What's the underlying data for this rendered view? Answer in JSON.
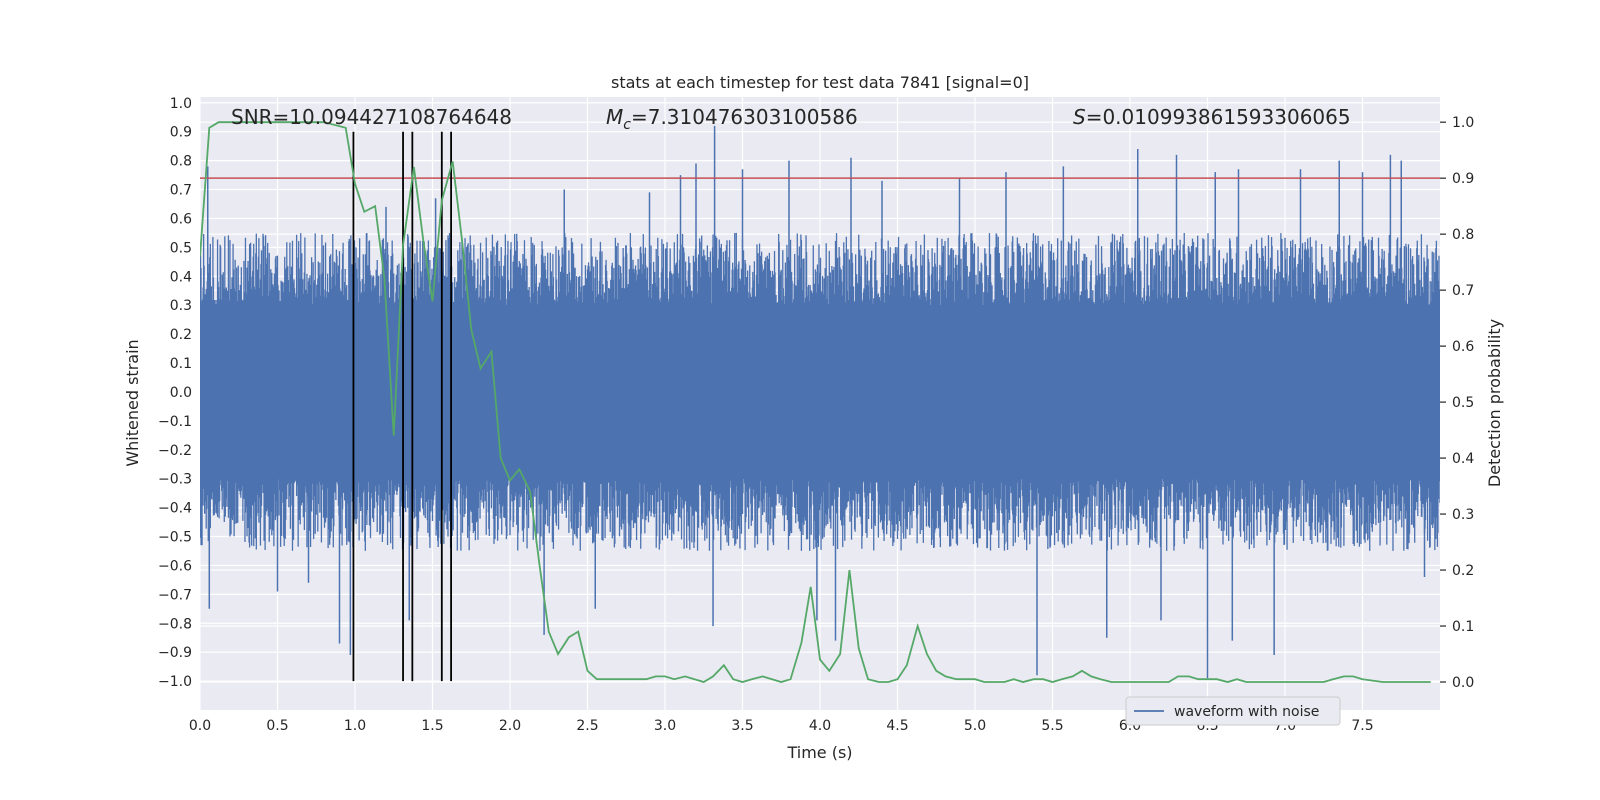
{
  "chart_data": {
    "type": "line",
    "title": "stats at each timestep for test data 7841 [signal=0]",
    "xlabel": "Time (s)",
    "ylabel": "Whitened strain",
    "y2label": "Detection probability",
    "xlim": [
      0,
      8
    ],
    "ylim": [
      -1.1,
      1.02
    ],
    "y2lim": [
      -0.05,
      1.045
    ],
    "xticks": [
      0.0,
      0.5,
      1.0,
      1.5,
      2.0,
      2.5,
      3.0,
      3.5,
      4.0,
      4.5,
      5.0,
      5.5,
      6.0,
      6.5,
      7.0,
      7.5
    ],
    "xtick_labels": [
      "0.0",
      "0.5",
      "1.0",
      "1.5",
      "2.0",
      "2.5",
      "3.0",
      "3.5",
      "4.0",
      "4.5",
      "5.0",
      "5.5",
      "6.0",
      "6.5",
      "7.0",
      "7.5"
    ],
    "yticks": [
      1.0,
      0.9,
      0.8,
      0.7,
      0.6,
      0.5,
      0.4,
      0.3,
      0.2,
      0.1,
      0.0,
      -0.1,
      -0.2,
      -0.3,
      -0.4,
      -0.5,
      -0.6,
      -0.7,
      -0.8,
      -0.9,
      -1.0
    ],
    "ytick_labels": [
      "1.0",
      "0.9",
      "0.8",
      "0.7",
      "0.6",
      "0.5",
      "0.4",
      "0.3",
      "0.2",
      "0.1",
      "0.0",
      "−0.1",
      "−0.2",
      "−0.3",
      "−0.4",
      "−0.5",
      "−0.6",
      "−0.7",
      "−0.8",
      "−0.9",
      "−1.0"
    ],
    "y2ticks": [
      0.0,
      0.1,
      0.2,
      0.3,
      0.4,
      0.5,
      0.6,
      0.7,
      0.8,
      0.9,
      1.0
    ],
    "y2tick_labels": [
      "0.0",
      "0.1",
      "0.2",
      "0.3",
      "0.4",
      "0.5",
      "0.6",
      "0.7",
      "0.8",
      "0.9",
      "1.0"
    ],
    "annotations": {
      "snr": "SNR=10.094427108764648",
      "mc_symbol": "M",
      "mc_sub": "c",
      "mc_value": "=7.310476303100586",
      "s_symbol": "S",
      "s_value": "=0.010993861593306065"
    },
    "threshold": {
      "value": 0.9,
      "axis": "right",
      "color": "#c44e52"
    },
    "vertical_markers": {
      "x": [
        0.99,
        1.31,
        1.37,
        1.56,
        1.62
      ],
      "y_range": [
        -1.0,
        0.9
      ],
      "color": "#000000"
    },
    "legend": {
      "entries": [
        "waveform with noise"
      ],
      "position": "lower-right"
    },
    "series": [
      {
        "name": "waveform with noise",
        "axis": "left",
        "color": "#4c72b0",
        "representation": "dense noise band",
        "band_core": [
          -0.3,
          0.3
        ],
        "typical_envelope": [
          -0.55,
          0.55
        ],
        "spikes": [
          {
            "x": 0.05,
            "y": 0.78
          },
          {
            "x": 0.06,
            "y": -0.75
          },
          {
            "x": 0.5,
            "y": -0.69
          },
          {
            "x": 0.7,
            "y": -0.66
          },
          {
            "x": 0.9,
            "y": -0.87
          },
          {
            "x": 0.97,
            "y": -0.91
          },
          {
            "x": 1.2,
            "y": 0.64
          },
          {
            "x": 1.35,
            "y": -0.79
          },
          {
            "x": 1.52,
            "y": 0.67
          },
          {
            "x": 2.22,
            "y": -0.84
          },
          {
            "x": 2.35,
            "y": 0.7
          },
          {
            "x": 2.55,
            "y": -0.75
          },
          {
            "x": 2.9,
            "y": 0.69
          },
          {
            "x": 3.1,
            "y": 0.75
          },
          {
            "x": 3.2,
            "y": 0.79
          },
          {
            "x": 3.32,
            "y": 0.92
          },
          {
            "x": 3.31,
            "y": -0.81
          },
          {
            "x": 3.5,
            "y": 0.77
          },
          {
            "x": 3.8,
            "y": 0.8
          },
          {
            "x": 3.98,
            "y": -0.79
          },
          {
            "x": 4.1,
            "y": -0.86
          },
          {
            "x": 4.2,
            "y": 0.81
          },
          {
            "x": 4.4,
            "y": 0.73
          },
          {
            "x": 4.9,
            "y": 0.74
          },
          {
            "x": 5.2,
            "y": 0.76
          },
          {
            "x": 5.4,
            "y": -0.98
          },
          {
            "x": 5.57,
            "y": 0.78
          },
          {
            "x": 5.85,
            "y": -0.85
          },
          {
            "x": 6.05,
            "y": 0.84
          },
          {
            "x": 6.2,
            "y": -0.79
          },
          {
            "x": 6.3,
            "y": 0.82
          },
          {
            "x": 6.5,
            "y": -0.99
          },
          {
            "x": 6.55,
            "y": 0.76
          },
          {
            "x": 6.7,
            "y": 0.77
          },
          {
            "x": 6.66,
            "y": -0.86
          },
          {
            "x": 6.93,
            "y": -0.91
          },
          {
            "x": 7.1,
            "y": 0.77
          },
          {
            "x": 7.35,
            "y": 0.8
          },
          {
            "x": 7.5,
            "y": 0.76
          },
          {
            "x": 7.68,
            "y": 0.82
          },
          {
            "x": 7.75,
            "y": 0.8
          },
          {
            "x": 7.9,
            "y": -0.64
          }
        ]
      },
      {
        "name": "detection probability",
        "axis": "right",
        "color": "#55a868",
        "x": [
          0.0,
          0.06,
          0.12,
          0.2,
          0.4,
          0.6,
          0.8,
          0.94,
          1.0,
          1.06,
          1.13,
          1.19,
          1.25,
          1.31,
          1.38,
          1.44,
          1.5,
          1.56,
          1.63,
          1.69,
          1.75,
          1.81,
          1.88,
          1.94,
          2.0,
          2.06,
          2.13,
          2.19,
          2.25,
          2.31,
          2.38,
          2.44,
          2.5,
          2.56,
          2.63,
          2.69,
          2.75,
          2.81,
          2.88,
          2.94,
          3.0,
          3.06,
          3.13,
          3.19,
          3.25,
          3.31,
          3.38,
          3.44,
          3.5,
          3.56,
          3.63,
          3.69,
          3.75,
          3.81,
          3.88,
          3.94,
          4.0,
          4.06,
          4.13,
          4.19,
          4.25,
          4.31,
          4.38,
          4.44,
          4.5,
          4.56,
          4.63,
          4.69,
          4.75,
          4.81,
          4.88,
          4.94,
          5.0,
          5.06,
          5.13,
          5.19,
          5.25,
          5.31,
          5.38,
          5.44,
          5.5,
          5.56,
          5.63,
          5.69,
          5.75,
          5.81,
          5.88,
          6.0,
          6.25,
          6.31,
          6.38,
          6.44,
          6.56,
          6.63,
          6.69,
          6.75,
          7.0,
          7.25,
          7.31,
          7.38,
          7.44,
          7.5,
          7.63,
          7.75,
          7.94
        ],
        "y": [
          0.76,
          0.99,
          1.0,
          1.0,
          1.0,
          1.0,
          1.0,
          0.99,
          0.89,
          0.84,
          0.85,
          0.72,
          0.44,
          0.78,
          0.92,
          0.79,
          0.68,
          0.86,
          0.93,
          0.79,
          0.63,
          0.56,
          0.59,
          0.4,
          0.36,
          0.38,
          0.34,
          0.21,
          0.09,
          0.05,
          0.08,
          0.09,
          0.02,
          0.005,
          0.005,
          0.005,
          0.005,
          0.005,
          0.005,
          0.01,
          0.01,
          0.005,
          0.01,
          0.005,
          0.0,
          0.01,
          0.03,
          0.005,
          0.0,
          0.005,
          0.01,
          0.005,
          0.0,
          0.005,
          0.07,
          0.17,
          0.04,
          0.02,
          0.05,
          0.2,
          0.06,
          0.005,
          0.0,
          0.0,
          0.005,
          0.03,
          0.1,
          0.05,
          0.02,
          0.01,
          0.005,
          0.005,
          0.005,
          0.0,
          0.0,
          0.0,
          0.005,
          0.0,
          0.005,
          0.005,
          0.0,
          0.005,
          0.01,
          0.02,
          0.01,
          0.005,
          0.0,
          0.0,
          0.0,
          0.01,
          0.01,
          0.005,
          0.005,
          0.0,
          0.005,
          0.0,
          0.0,
          0.0,
          0.005,
          0.01,
          0.01,
          0.005,
          0.0,
          0.0,
          0.0
        ]
      }
    ]
  }
}
